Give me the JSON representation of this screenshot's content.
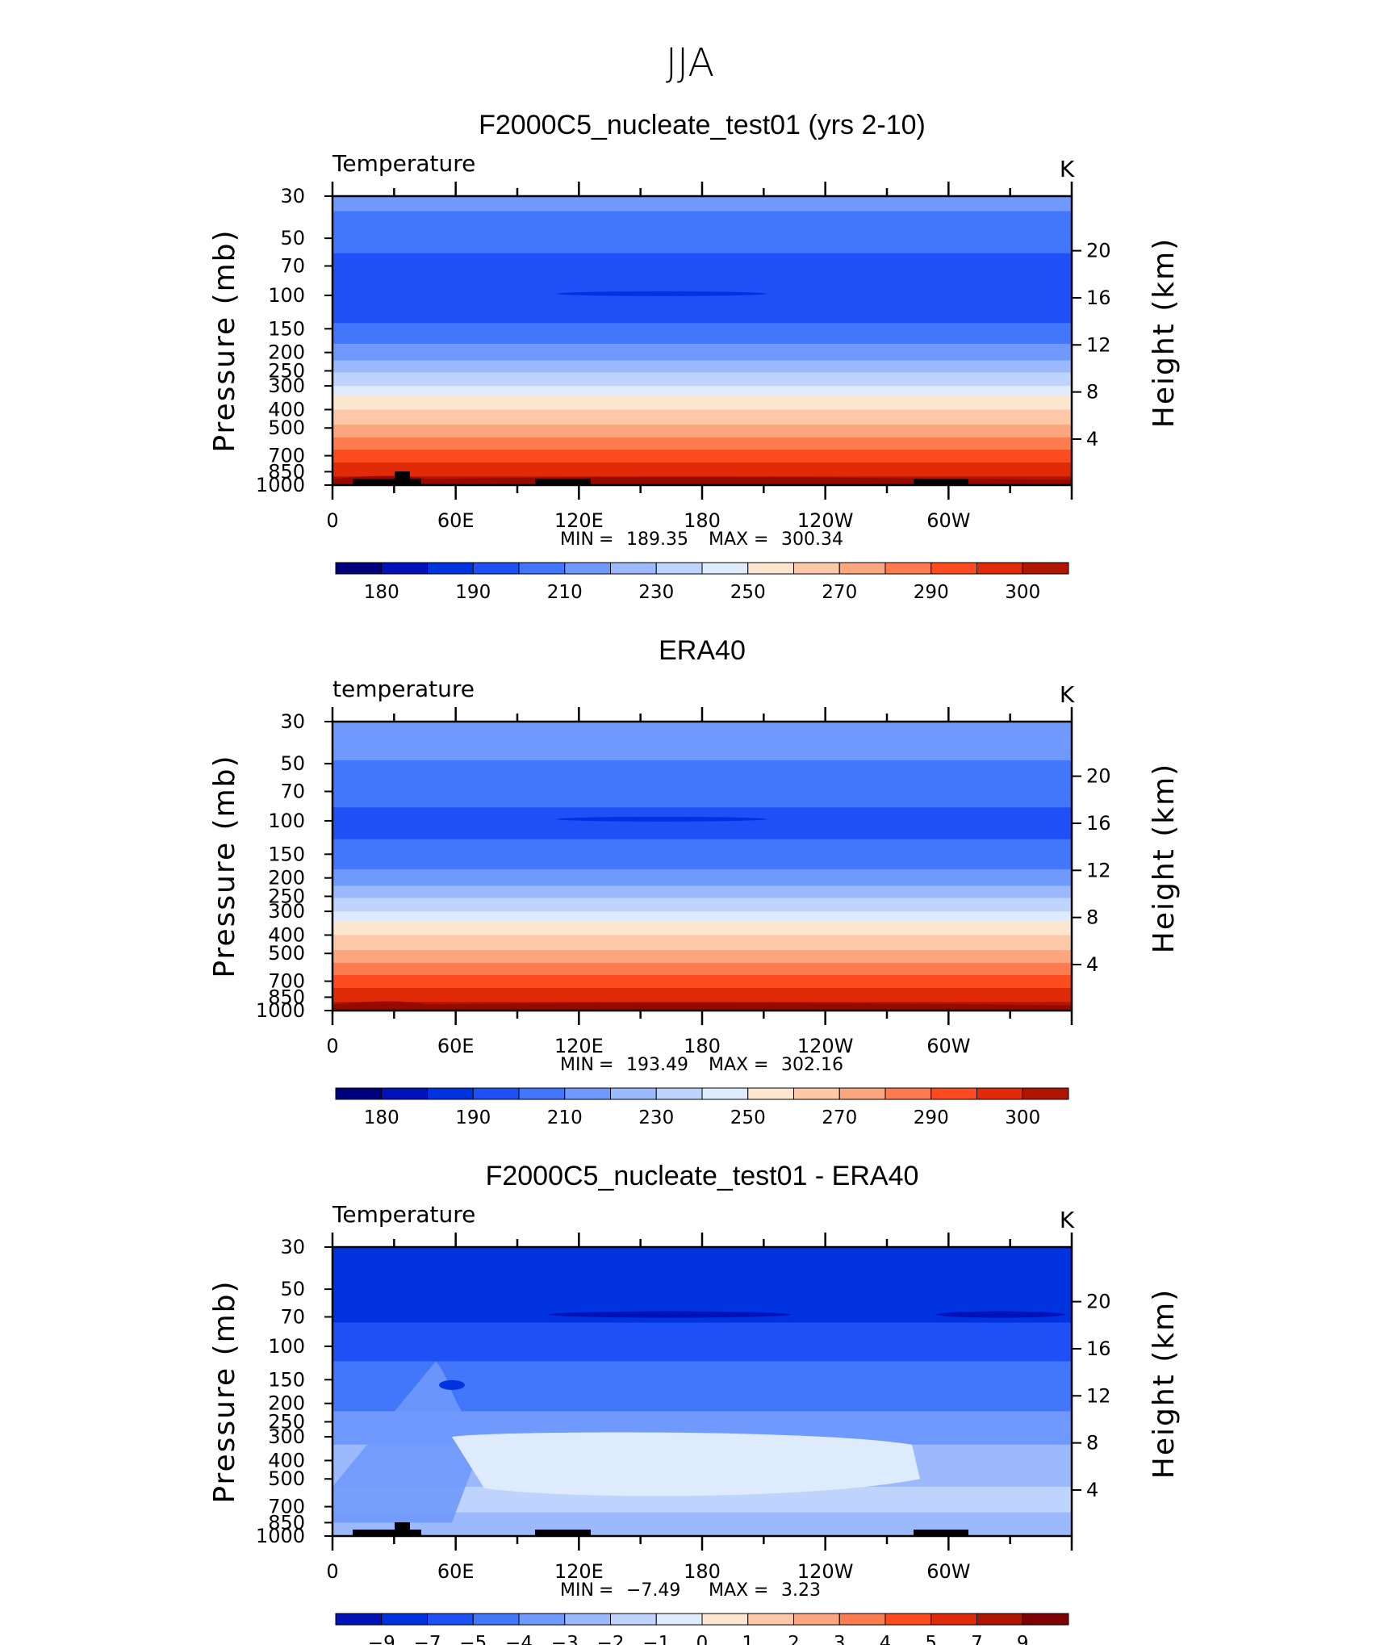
{
  "figure_title": "JJA",
  "colors": {
    "temp_levels": [
      "#00007f",
      "#0012b8",
      "#0033e0",
      "#1d50f5",
      "#4277fb",
      "#6f99fc",
      "#9bb9fc",
      "#bfd4fc",
      "#deebfc",
      "#fde6cf",
      "#fcc8a8",
      "#fca680",
      "#fc7c4f",
      "#fc4b1e",
      "#e02a08",
      "#b01500",
      "#7f0000"
    ],
    "diff_levels": [
      "#00007f",
      "#0012b8",
      "#0033e0",
      "#1d50f5",
      "#4277fb",
      "#6f99fc",
      "#9bb9fc",
      "#bfd4fc",
      "#deebfc",
      "#fde6cf",
      "#fcc8a8",
      "#fca680",
      "#fc7c4f",
      "#fc4b1e",
      "#e02a08",
      "#b01500",
      "#7f0000"
    ],
    "topography": "#000000"
  },
  "chart_data": [
    {
      "type": "heatmap",
      "panel_title": "F2000C5_nucleate_test01 (yrs 2-10)",
      "left_label": "Temperature",
      "units": "K",
      "ylabel": "Pressure (mb)",
      "ylabel_right": "Height (km)",
      "pressure_ticks": [
        30,
        50,
        70,
        100,
        150,
        200,
        250,
        300,
        400,
        500,
        700,
        850,
        1000
      ],
      "height_ticks": [
        20,
        16,
        12,
        8,
        4
      ],
      "x_ticks": [
        "0",
        "60E",
        "120E",
        "180",
        "120W",
        "60W"
      ],
      "ylim": [
        1000,
        30
      ],
      "min_label": "MIN",
      "min_value": "189.35",
      "max_label": "MAX",
      "max_value": "300.34",
      "colorbar_labels": [
        "180",
        "190",
        "210",
        "230",
        "250",
        "270",
        "290",
        "300"
      ],
      "layers": [
        {
          "p_top": 30,
          "p_bot": 36,
          "level": 5
        },
        {
          "p_top": 36,
          "p_bot": 60,
          "level": 4
        },
        {
          "p_top": 60,
          "p_bot": 140,
          "level": 3
        },
        {
          "p_top": 140,
          "p_bot": 180,
          "level": 4
        },
        {
          "p_top": 180,
          "p_bot": 220,
          "level": 5
        },
        {
          "p_top": 220,
          "p_bot": 255,
          "level": 6
        },
        {
          "p_top": 255,
          "p_bot": 300,
          "level": 7
        },
        {
          "p_top": 300,
          "p_bot": 335,
          "level": 8
        },
        {
          "p_top": 335,
          "p_bot": 400,
          "level": 9
        },
        {
          "p_top": 400,
          "p_bot": 480,
          "level": 10
        },
        {
          "p_top": 480,
          "p_bot": 560,
          "level": 11
        },
        {
          "p_top": 560,
          "p_bot": 650,
          "level": 12
        },
        {
          "p_top": 650,
          "p_bot": 760,
          "level": 13
        },
        {
          "p_top": 760,
          "p_bot": 900,
          "level": 14
        },
        {
          "p_top": 900,
          "p_bot": 1000,
          "level": 15
        }
      ]
    },
    {
      "type": "heatmap",
      "panel_title": "ERA40",
      "left_label": "temperature",
      "units": "K",
      "ylabel": "Pressure (mb)",
      "ylabel_right": "Height (km)",
      "pressure_ticks": [
        30,
        50,
        70,
        100,
        150,
        200,
        250,
        300,
        400,
        500,
        700,
        850,
        1000
      ],
      "height_ticks": [
        20,
        16,
        12,
        8,
        4
      ],
      "x_ticks": [
        "0",
        "60E",
        "120E",
        "180",
        "120W",
        "60W"
      ],
      "ylim": [
        1000,
        30
      ],
      "min_label": "MIN",
      "min_value": "193.49",
      "max_label": "MAX",
      "max_value": "302.16",
      "colorbar_labels": [
        "180",
        "190",
        "210",
        "230",
        "250",
        "270",
        "290",
        "300"
      ],
      "layers": [
        {
          "p_top": 30,
          "p_bot": 48,
          "level": 5
        },
        {
          "p_top": 48,
          "p_bot": 85,
          "level": 4
        },
        {
          "p_top": 85,
          "p_bot": 125,
          "level": 3
        },
        {
          "p_top": 125,
          "p_bot": 180,
          "level": 4
        },
        {
          "p_top": 180,
          "p_bot": 220,
          "level": 5
        },
        {
          "p_top": 220,
          "p_bot": 255,
          "level": 6
        },
        {
          "p_top": 255,
          "p_bot": 300,
          "level": 7
        },
        {
          "p_top": 300,
          "p_bot": 340,
          "level": 8
        },
        {
          "p_top": 340,
          "p_bot": 400,
          "level": 9
        },
        {
          "p_top": 400,
          "p_bot": 480,
          "level": 10
        },
        {
          "p_top": 480,
          "p_bot": 560,
          "level": 11
        },
        {
          "p_top": 560,
          "p_bot": 650,
          "level": 12
        },
        {
          "p_top": 650,
          "p_bot": 760,
          "level": 13
        },
        {
          "p_top": 760,
          "p_bot": 900,
          "level": 14
        },
        {
          "p_top": 900,
          "p_bot": 1000,
          "level": 15
        }
      ]
    },
    {
      "type": "heatmap",
      "panel_title": "F2000C5_nucleate_test01 - ERA40",
      "left_label": "Temperature",
      "units": "K",
      "ylabel": "Pressure (mb)",
      "ylabel_right": "Height (km)",
      "pressure_ticks": [
        30,
        50,
        70,
        100,
        150,
        200,
        250,
        300,
        400,
        500,
        700,
        850,
        1000
      ],
      "height_ticks": [
        20,
        16,
        12,
        8,
        4
      ],
      "x_ticks": [
        "0",
        "60E",
        "120E",
        "180",
        "120W",
        "60W"
      ],
      "ylim": [
        1000,
        30
      ],
      "min_label": "MIN",
      "min_value": "−7.49",
      "max_label": "MAX",
      "max_value": "3.23",
      "colorbar_labels": [
        "−9",
        "−7",
        "−5",
        "−4",
        "−3",
        "−2",
        "−1",
        "0",
        "1",
        "2",
        "3",
        "4",
        "5",
        "7",
        "9"
      ],
      "layers": [
        {
          "p_top": 30,
          "p_bot": 75,
          "level": 2
        },
        {
          "p_top": 75,
          "p_bot": 120,
          "level": 3
        },
        {
          "p_top": 120,
          "p_bot": 220,
          "level": 4
        },
        {
          "p_top": 220,
          "p_bot": 330,
          "level": 5
        },
        {
          "p_top": 330,
          "p_bot": 550,
          "level": 6
        },
        {
          "p_top": 550,
          "p_bot": 750,
          "level": 7
        },
        {
          "p_top": 750,
          "p_bot": 1000,
          "level": 6
        }
      ]
    }
  ]
}
